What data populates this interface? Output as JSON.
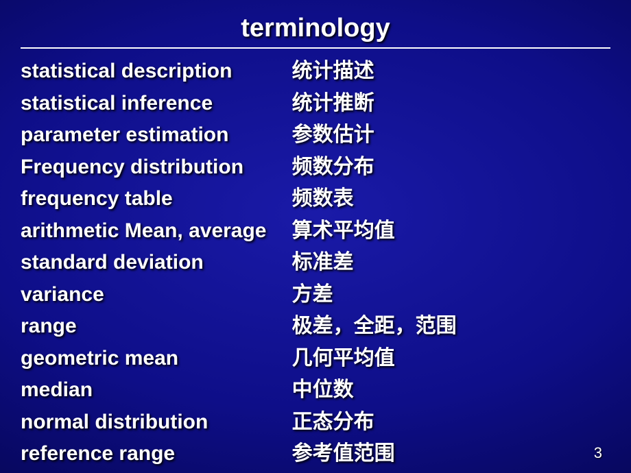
{
  "slide": {
    "title": "terminology",
    "page_number": "3",
    "background": {
      "inner_color": "#1a1aa8",
      "mid_color": "#0e0e88",
      "outer_color": "#050550",
      "edge_color": "#010128"
    },
    "text_color": "#ffffff",
    "rule_color": "#ffffff",
    "title_fontsize": 38,
    "row_fontsize": 30,
    "terms": [
      {
        "en": "statistical description",
        "cn": "统计描述"
      },
      {
        "en": "statistical inference",
        "cn": "统计推断"
      },
      {
        "en": "parameter estimation",
        "cn": "参数估计"
      },
      {
        "en": "Frequency distribution",
        "cn": "频数分布"
      },
      {
        "en": "frequency table",
        "cn": "频数表"
      },
      {
        "en": "arithmetic Mean, average",
        "cn": "算术平均值"
      },
      {
        "en": "standard deviation",
        "cn": "标准差"
      },
      {
        "en": "variance",
        "cn": "方差"
      },
      {
        "en": "range",
        "cn": "极差，全距，范围"
      },
      {
        "en": "geometric mean",
        "cn": "几何平均值"
      },
      {
        "en": "median",
        "cn": "中位数"
      },
      {
        "en": "normal distribution",
        "cn": "正态分布"
      },
      {
        "en": "reference range",
        "cn": "参考值范围"
      }
    ]
  }
}
